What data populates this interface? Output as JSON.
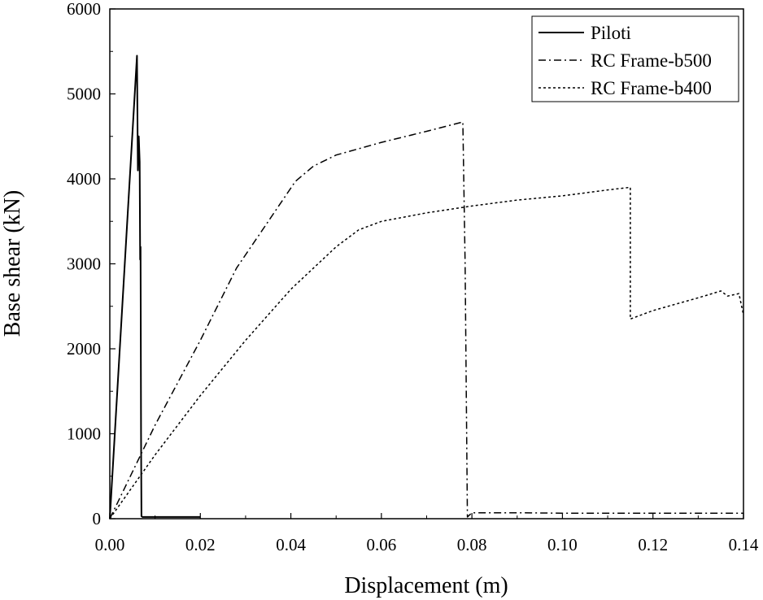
{
  "chart_data": {
    "type": "line",
    "title": "",
    "xlabel": "Displacement (m)",
    "ylabel": "Base shear (kN)",
    "xlim": [
      0,
      0.14
    ],
    "ylim": [
      0,
      6000
    ],
    "xticks": [
      0,
      0.02,
      0.04,
      0.06,
      0.08,
      0.1,
      0.12,
      0.14
    ],
    "xtick_labels": [
      "0.00",
      "0.02",
      "0.04",
      "0.06",
      "0.08",
      "0.10",
      "0.12",
      "0.14"
    ],
    "yticks": [
      0,
      1000,
      2000,
      3000,
      4000,
      5000,
      6000
    ],
    "ytick_labels": [
      "0",
      "1000",
      "2000",
      "3000",
      "4000",
      "5000",
      "6000"
    ],
    "grid": false,
    "legend_position": "top-right",
    "series": [
      {
        "name": "Piloti",
        "style": "solid",
        "x": [
          0,
          0.006,
          0.0062,
          0.0064,
          0.0066,
          0.0067,
          0.0068,
          0.0069,
          0.007,
          0.0072,
          0.02
        ],
        "y": [
          0,
          5450,
          4100,
          4500,
          4200,
          3050,
          3200,
          1000,
          30,
          20,
          20
        ]
      },
      {
        "name": "RC Frame-b500",
        "style": "dashdot",
        "x": [
          0,
          0.01,
          0.02,
          0.028,
          0.035,
          0.041,
          0.045,
          0.05,
          0.06,
          0.07,
          0.078,
          0.0785,
          0.079,
          0.08,
          0.09,
          0.1,
          0.12,
          0.14
        ],
        "y": [
          0,
          1100,
          2100,
          2950,
          3500,
          3970,
          4150,
          4280,
          4430,
          4560,
          4670,
          3000,
          20,
          70,
          70,
          65,
          65,
          65
        ]
      },
      {
        "name": "RC Frame-b400",
        "style": "dotted",
        "x": [
          0,
          0.01,
          0.02,
          0.03,
          0.04,
          0.05,
          0.055,
          0.06,
          0.07,
          0.08,
          0.09,
          0.1,
          0.11,
          0.115,
          0.115,
          0.12,
          0.13,
          0.135,
          0.1365,
          0.139,
          0.14
        ],
        "y": [
          0,
          750,
          1450,
          2100,
          2700,
          3200,
          3400,
          3500,
          3600,
          3680,
          3750,
          3800,
          3870,
          3900,
          2350,
          2450,
          2600,
          2680,
          2620,
          2650,
          2400
        ]
      }
    ]
  }
}
